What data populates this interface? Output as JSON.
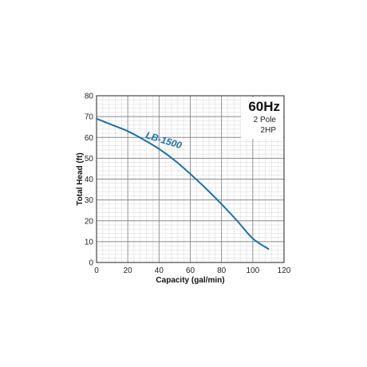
{
  "chart_data": {
    "type": "line",
    "title": "",
    "xlabel": "Capacity (gal/min)",
    "ylabel": "Total Head (ft)",
    "xlim": [
      0,
      120
    ],
    "ylim": [
      0,
      80
    ],
    "x_ticks": [
      "0",
      "20",
      "40",
      "60",
      "80",
      "100",
      "120"
    ],
    "y_ticks": [
      "0",
      "10",
      "20",
      "30",
      "40",
      "50",
      "60",
      "70",
      "80"
    ],
    "grid": true,
    "annotations": {
      "frequency": "60Hz",
      "poles": "2 Pole",
      "power": "2HP"
    },
    "series": [
      {
        "name": "LB-1500",
        "color": "#1f6fa3",
        "x": [
          0,
          10,
          20,
          30,
          40,
          50,
          60,
          70,
          80,
          90,
          100,
          110
        ],
        "y": [
          69,
          66,
          63,
          59,
          54.5,
          49,
          42.5,
          35.5,
          28,
          20,
          11.5,
          6.5
        ]
      }
    ]
  }
}
